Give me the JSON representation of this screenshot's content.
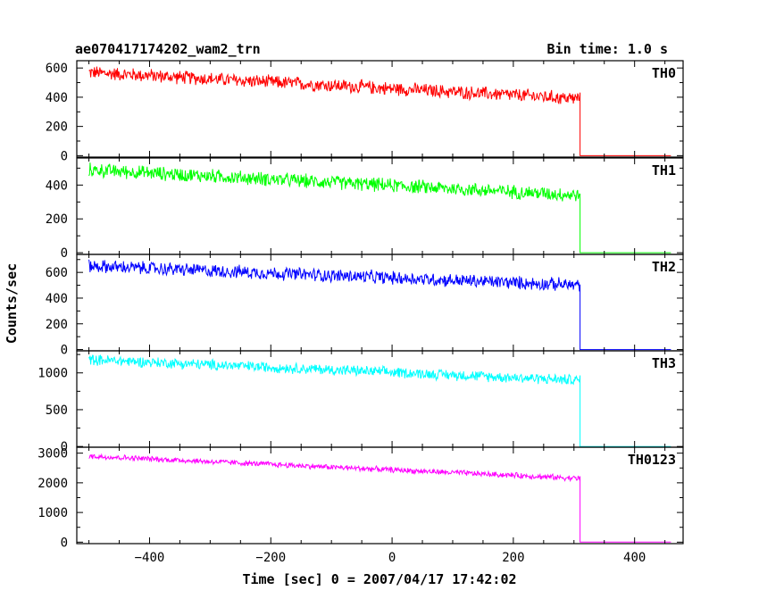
{
  "header": {
    "title": "ae070417174202_wam2_trn",
    "bin_time": "Bin time: 1.0 s"
  },
  "axes": {
    "ylabel": "Counts/sec",
    "xlabel": "Time [sec] 0 = 2007/04/17 17:42:02",
    "x_ticks": [
      "−400",
      "−200",
      "0",
      "200",
      "400"
    ]
  },
  "chart_data": {
    "type": "line",
    "xlim": [
      -520,
      480
    ],
    "x_start": -500,
    "x_end": 460,
    "drop_x": 310,
    "x_tick_values": [
      -400,
      -200,
      0,
      200,
      400
    ],
    "panels": [
      {
        "name": "TH0",
        "color": "#ff0000",
        "ylim": [
          -10,
          650
        ],
        "y_ticks": [
          0,
          200,
          400,
          600
        ],
        "y_tick_labels": [
          "0",
          "200",
          "400",
          "600"
        ],
        "start_level": 570,
        "end_level": 390,
        "after_level": 0,
        "noise": 45
      },
      {
        "name": "TH1",
        "color": "#00ff00",
        "ylim": [
          -10,
          560
        ],
        "y_ticks": [
          0,
          200,
          400
        ],
        "y_tick_labels": [
          "0",
          "200",
          "400"
        ],
        "start_level": 490,
        "end_level": 340,
        "after_level": 0,
        "noise": 40
      },
      {
        "name": "TH2",
        "color": "#0000ff",
        "ylim": [
          -10,
          740
        ],
        "y_ticks": [
          0,
          200,
          400,
          600
        ],
        "y_tick_labels": [
          "0",
          "200",
          "400",
          "600"
        ],
        "start_level": 650,
        "end_level": 500,
        "after_level": 0,
        "noise": 50
      },
      {
        "name": "TH3",
        "color": "#00ffff",
        "ylim": [
          -10,
          1300
        ],
        "y_ticks": [
          0,
          500,
          1000
        ],
        "y_tick_labels": [
          "0",
          "500",
          "1000"
        ],
        "start_level": 1180,
        "end_level": 900,
        "after_level": 0,
        "noise": 70
      },
      {
        "name": "TH0123",
        "color": "#ff00ff",
        "ylim": [
          -50,
          3200
        ],
        "y_ticks": [
          0,
          1000,
          2000,
          3000
        ],
        "y_tick_labels": [
          "0",
          "1000",
          "2000",
          "3000"
        ],
        "start_level": 2900,
        "end_level": 2150,
        "after_level": 0,
        "noise": 90
      }
    ]
  }
}
